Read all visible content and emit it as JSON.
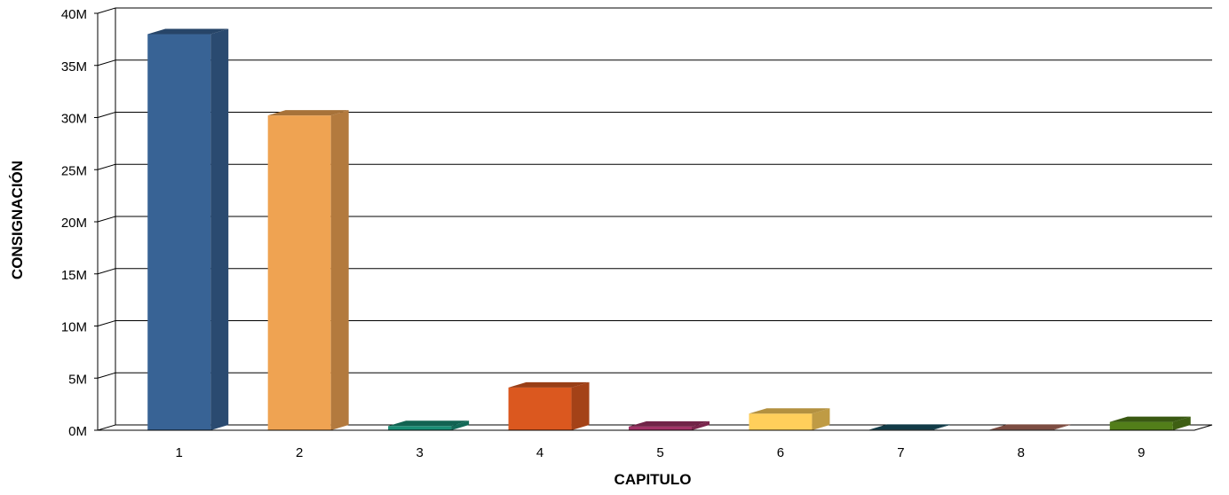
{
  "chart_data": {
    "type": "bar",
    "title": "",
    "xlabel": "CAPITULO",
    "ylabel": "CONSIGNACIÓN",
    "categories": [
      "1",
      "2",
      "3",
      "4",
      "5",
      "6",
      "7",
      "8",
      "9"
    ],
    "values": [
      38,
      30.2,
      0.4,
      4.1,
      0.35,
      1.6,
      0.05,
      0.05,
      0.8
    ],
    "value_unit": "M",
    "ylim": [
      0,
      40
    ],
    "yticks": [
      "0M",
      "5M",
      "10M",
      "15M",
      "20M",
      "25M",
      "30M",
      "35M",
      "40M"
    ],
    "grid": true,
    "legend": "none",
    "style": "3d",
    "colors": [
      "#386395",
      "#EFA352",
      "#1A8D75",
      "#DB581F",
      "#A23367",
      "#FFCF5B",
      "#1A5466",
      "#B36E5E",
      "#527E19"
    ]
  }
}
